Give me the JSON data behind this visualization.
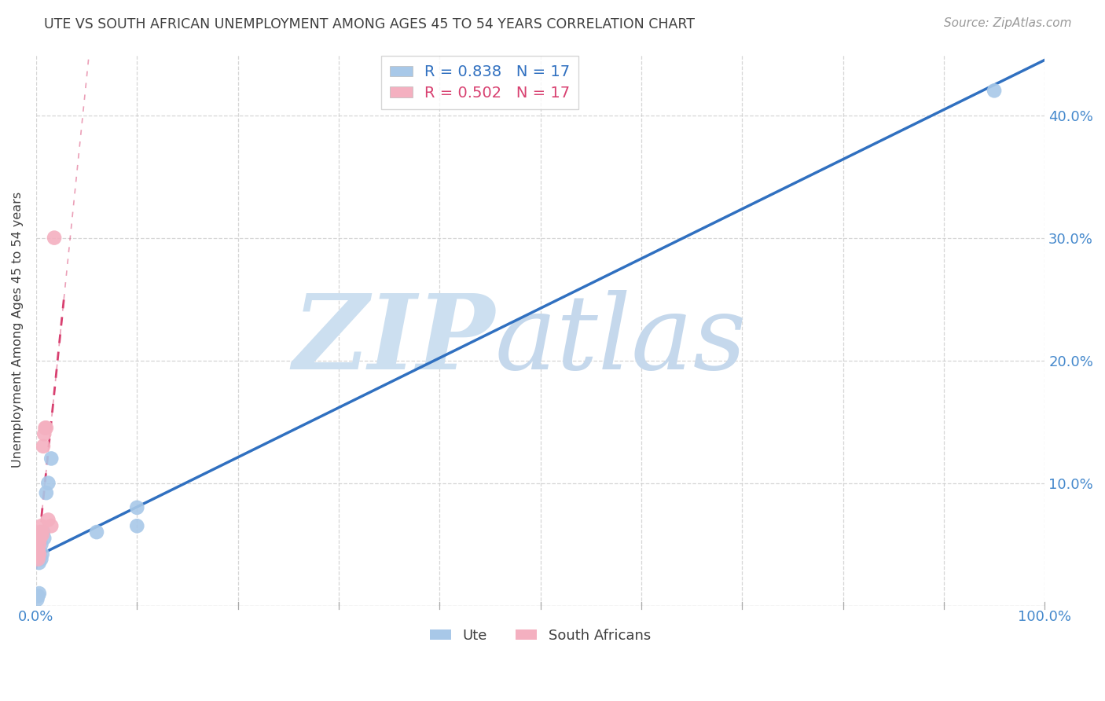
{
  "title": "UTE VS SOUTH AFRICAN UNEMPLOYMENT AMONG AGES 45 TO 54 YEARS CORRELATION CHART",
  "source": "Source: ZipAtlas.com",
  "ylabel": "Unemployment Among Ages 45 to 54 years",
  "legend_ute": "Ute",
  "legend_sa": "South Africans",
  "ute_color": "#a8c8e8",
  "sa_color": "#f4b0c0",
  "ute_line_color": "#3070c0",
  "sa_line_color": "#d84070",
  "bg_color": "#ffffff",
  "grid_color": "#cccccc",
  "axis_color": "#4488cc",
  "title_color": "#404040",
  "xlim": [
    0.0,
    1.0
  ],
  "ylim": [
    0.0,
    0.45
  ],
  "xticks": [
    0.0,
    0.1,
    0.2,
    0.3,
    0.4,
    0.5,
    0.6,
    0.7,
    0.8,
    0.9,
    1.0
  ],
  "yticks": [
    0.0,
    0.1,
    0.2,
    0.3,
    0.4
  ],
  "xtick_labels": [
    "0.0%",
    "",
    "",
    "",
    "",
    "",
    "",
    "",
    "",
    "",
    "100.0%"
  ],
  "ytick_labels_right": [
    "",
    "10.0%",
    "20.0%",
    "30.0%",
    "40.0%"
  ],
  "ute_x": [
    0.001,
    0.002,
    0.003,
    0.003,
    0.004,
    0.005,
    0.005,
    0.006,
    0.007,
    0.008,
    0.01,
    0.012,
    0.015,
    0.06,
    0.1,
    0.95,
    0.1
  ],
  "ute_y": [
    0.005,
    0.008,
    0.01,
    0.035,
    0.04,
    0.038,
    0.05,
    0.042,
    0.06,
    0.055,
    0.092,
    0.1,
    0.12,
    0.06,
    0.08,
    0.42,
    0.065
  ],
  "sa_x": [
    0.001,
    0.002,
    0.002,
    0.003,
    0.003,
    0.004,
    0.004,
    0.005,
    0.005,
    0.006,
    0.007,
    0.008,
    0.009,
    0.01,
    0.012,
    0.015,
    0.018
  ],
  "sa_y": [
    0.04,
    0.038,
    0.045,
    0.042,
    0.05,
    0.055,
    0.06,
    0.06,
    0.065,
    0.058,
    0.13,
    0.14,
    0.145,
    0.145,
    0.07,
    0.065,
    0.3
  ],
  "ute_line_m": 0.405,
  "ute_line_b": 0.04,
  "sa_line_m": 8.0,
  "sa_line_b": 0.03
}
